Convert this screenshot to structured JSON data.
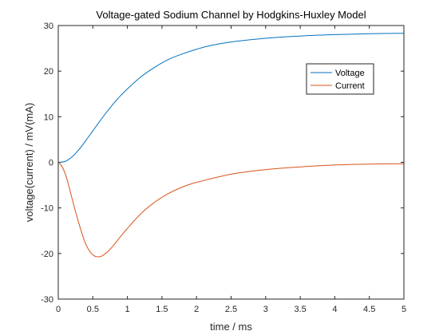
{
  "chart_data": {
    "type": "line",
    "title": "Voltage-gated Sodium Channel by Hodgkins-Huxley Model",
    "xlabel": "time / ms",
    "ylabel": "voltage(current) / mV(mA)",
    "xlim": [
      0,
      5
    ],
    "ylim": [
      -30,
      30
    ],
    "xticks": [
      "0",
      "0.5",
      "1",
      "1.5",
      "2",
      "2.5",
      "3",
      "3.5",
      "4",
      "4.5",
      "5"
    ],
    "yticks": [
      "30",
      "20",
      "10",
      "0",
      "-10",
      "-20",
      "-30"
    ],
    "grid": false,
    "legend_position": "top-right",
    "series": [
      {
        "name": "Voltage",
        "color": "#0072BD",
        "x": [
          0,
          0.1,
          0.2,
          0.3,
          0.4,
          0.5,
          0.6,
          0.7,
          0.8,
          0.9,
          1.0,
          1.2,
          1.4,
          1.6,
          1.8,
          2.0,
          2.2,
          2.5,
          3.0,
          3.5,
          4.0,
          4.5,
          5.0
        ],
        "values": [
          0,
          0.2,
          1.2,
          2.8,
          4.8,
          6.9,
          9.0,
          11.0,
          12.9,
          14.6,
          16.1,
          18.8,
          20.9,
          22.6,
          23.8,
          24.8,
          25.6,
          26.4,
          27.2,
          27.7,
          28.0,
          28.2,
          28.3
        ]
      },
      {
        "name": "Current",
        "color": "#D95319",
        "x": [
          0,
          0.05,
          0.1,
          0.15,
          0.2,
          0.3,
          0.4,
          0.5,
          0.6,
          0.7,
          0.8,
          0.9,
          1.0,
          1.2,
          1.4,
          1.6,
          1.8,
          2.0,
          2.5,
          3.0,
          3.5,
          4.0,
          4.5,
          5.0
        ],
        "values": [
          0,
          -0.8,
          -2.5,
          -5.0,
          -8.0,
          -13.5,
          -18.0,
          -20.3,
          -20.7,
          -19.8,
          -18.2,
          -16.3,
          -14.5,
          -11.2,
          -8.7,
          -6.8,
          -5.4,
          -4.4,
          -2.6,
          -1.6,
          -1.0,
          -0.6,
          -0.4,
          -0.3
        ]
      }
    ]
  }
}
